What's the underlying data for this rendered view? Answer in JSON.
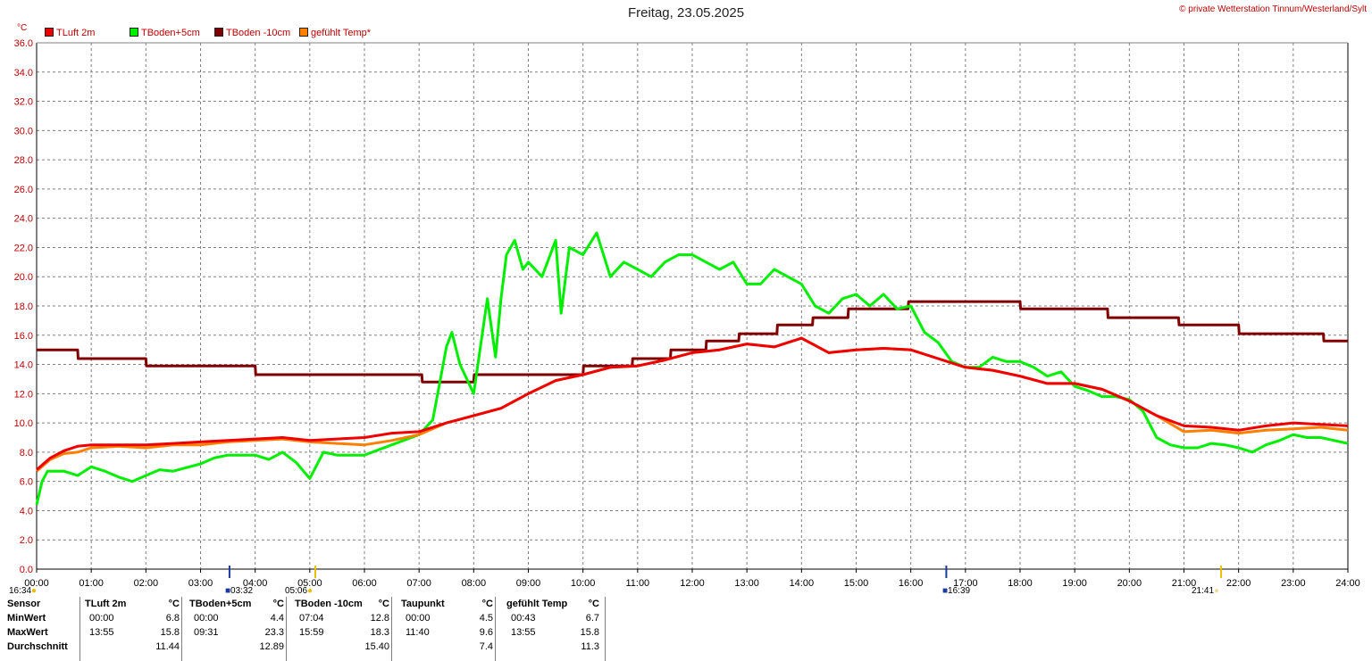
{
  "title": "Freitag, 23.05.2025",
  "copyright": "© private Wetterstation Tinnum/Westerland/Sylt",
  "colors": {
    "tluft": "#ee0000",
    "tboden5": "#00ee00",
    "tboden10": "#800000",
    "gefuehlt": "#ff8000",
    "grid": "#808080",
    "axis_text": "#000000",
    "legend_text": "#c00000"
  },
  "legend": [
    {
      "label": "TLuft 2m",
      "color": "#ee0000"
    },
    {
      "label": "TBoden+5cm",
      "color": "#00ee00"
    },
    {
      "label": "TBoden -10cm",
      "color": "#800000"
    },
    {
      "label": "gefühlt Temp*",
      "color": "#ff8000"
    }
  ],
  "unit": "°C",
  "sun_markers": [
    {
      "label": "16:34",
      "icon": "moon-set-icon"
    },
    {
      "label": "03:32",
      "icon": "moon-rise-icon"
    },
    {
      "label": "05:06",
      "icon": "sunrise-icon"
    },
    {
      "label": "16:39",
      "icon": "moon-icon"
    },
    {
      "label": "21:41",
      "icon": "sunset-icon"
    }
  ],
  "chart_data": {
    "type": "line",
    "title": "Freitag, 23.05.2025",
    "ylabel": "°C",
    "xlabel": "",
    "ylim": [
      0,
      36
    ],
    "xlim": [
      0,
      24
    ],
    "y_ticks": [
      "0.0",
      "2.0",
      "4.0",
      "6.0",
      "8.0",
      "10.0",
      "12.0",
      "14.0",
      "16.0",
      "18.0",
      "20.0",
      "22.0",
      "24.0",
      "26.0",
      "28.0",
      "30.0",
      "32.0",
      "34.0",
      "36.0"
    ],
    "x_ticks": [
      "00:00",
      "01:00",
      "02:00",
      "03:00",
      "04:00",
      "05:00",
      "06:00",
      "07:00",
      "08:00",
      "09:00",
      "10:00",
      "11:00",
      "12:00",
      "13:00",
      "14:00",
      "15:00",
      "16:00",
      "17:00",
      "18:00",
      "19:00",
      "20:00",
      "21:00",
      "22:00",
      "23:00",
      "24:00"
    ],
    "grid": true,
    "legend_position": "top-left",
    "series": [
      {
        "name": "TLuft 2m",
        "color": "#ee0000",
        "x": [
          0,
          0.25,
          0.5,
          0.75,
          1,
          1.5,
          2,
          2.5,
          3,
          3.5,
          4,
          4.5,
          5,
          5.5,
          6,
          6.5,
          7,
          7.5,
          8,
          8.5,
          9,
          9.5,
          10,
          10.5,
          11,
          11.5,
          12,
          12.5,
          13,
          13.5,
          14,
          14.5,
          15,
          15.5,
          16,
          16.5,
          17,
          17.5,
          18,
          18.5,
          19,
          19.5,
          20,
          20.5,
          21,
          21.5,
          22,
          22.5,
          23,
          23.5,
          24
        ],
        "y": [
          6.8,
          7.6,
          8.1,
          8.4,
          8.5,
          8.5,
          8.5,
          8.6,
          8.7,
          8.8,
          8.9,
          9.0,
          8.8,
          8.9,
          9.0,
          9.3,
          9.4,
          10.0,
          10.5,
          11.0,
          12.0,
          12.9,
          13.3,
          13.8,
          13.9,
          14.3,
          14.8,
          15.0,
          15.4,
          15.2,
          15.8,
          14.8,
          15.0,
          15.1,
          15.0,
          14.4,
          13.8,
          13.6,
          13.2,
          12.7,
          12.7,
          12.3,
          11.5,
          10.5,
          9.8,
          9.7,
          9.5,
          9.8,
          10.0,
          9.9,
          9.8
        ]
      },
      {
        "name": "TBoden+5cm",
        "color": "#00ee00",
        "x": [
          0,
          0.1,
          0.2,
          0.5,
          0.75,
          1,
          1.25,
          1.5,
          1.75,
          2,
          2.25,
          2.5,
          3,
          3.25,
          3.5,
          4,
          4.25,
          4.5,
          4.75,
          5,
          5.25,
          5.5,
          6,
          6.5,
          7,
          7.25,
          7.5,
          7.6,
          7.75,
          8,
          8.25,
          8.4,
          8.5,
          8.6,
          8.75,
          8.9,
          9,
          9.25,
          9.5,
          9.6,
          9.75,
          10,
          10.25,
          10.5,
          10.75,
          11,
          11.25,
          11.5,
          11.75,
          12,
          12.25,
          12.5,
          12.75,
          13,
          13.25,
          13.5,
          13.75,
          14,
          14.25,
          14.5,
          14.75,
          15,
          15.25,
          15.5,
          15.75,
          16,
          16.25,
          16.5,
          16.75,
          17,
          17.25,
          17.5,
          17.75,
          18,
          18.25,
          18.5,
          18.75,
          19,
          19.25,
          19.5,
          19.75,
          20,
          20.25,
          20.5,
          20.75,
          21,
          21.25,
          21.5,
          21.75,
          22,
          22.25,
          22.5,
          22.75,
          23,
          23.25,
          23.5,
          23.75,
          24
        ],
        "y": [
          4.4,
          6.0,
          6.7,
          6.7,
          6.4,
          7.0,
          6.7,
          6.3,
          6.0,
          6.4,
          6.8,
          6.7,
          7.2,
          7.6,
          7.8,
          7.8,
          7.5,
          8.0,
          7.3,
          6.2,
          8.0,
          7.8,
          7.8,
          8.5,
          9.2,
          10.2,
          15.2,
          16.2,
          14.0,
          12.0,
          18.5,
          14.5,
          18.5,
          21.5,
          22.5,
          20.5,
          21.0,
          20.0,
          22.5,
          17.5,
          22.0,
          21.5,
          23.0,
          20.0,
          21.0,
          20.5,
          20.0,
          21.0,
          21.5,
          21.5,
          21.0,
          20.5,
          21.0,
          19.5,
          19.5,
          20.5,
          20.0,
          19.5,
          18.0,
          17.5,
          18.5,
          18.8,
          18.0,
          18.8,
          17.8,
          18.0,
          16.2,
          15.5,
          14.2,
          13.8,
          13.8,
          14.5,
          14.2,
          14.2,
          13.8,
          13.2,
          13.5,
          12.5,
          12.2,
          11.8,
          11.8,
          11.6,
          10.8,
          9.0,
          8.5,
          8.3,
          8.3,
          8.6,
          8.5,
          8.3,
          8.0,
          8.5,
          8.8,
          9.2,
          9.0,
          9.0,
          8.8,
          8.6
        ]
      },
      {
        "name": "TBoden -10cm",
        "color": "#800000",
        "x": [
          0,
          0.75,
          0.76,
          2.0,
          2.01,
          4.0,
          4.01,
          7.05,
          7.06,
          8.0,
          8.01,
          10.0,
          10.01,
          10.9,
          10.91,
          11.6,
          11.61,
          12.25,
          12.26,
          12.85,
          12.86,
          13.55,
          13.56,
          14.2,
          14.21,
          14.85,
          14.86,
          15.95,
          15.96,
          18.0,
          18.01,
          19.6,
          19.61,
          20.9,
          20.91,
          22.0,
          22.01,
          23.55,
          23.56,
          24
        ],
        "y": [
          15.0,
          15.0,
          14.4,
          14.4,
          13.9,
          13.9,
          13.3,
          13.3,
          12.8,
          12.8,
          13.3,
          13.3,
          13.9,
          13.9,
          14.4,
          14.4,
          15.0,
          15.0,
          15.6,
          15.6,
          16.1,
          16.1,
          16.7,
          16.7,
          17.2,
          17.2,
          17.8,
          17.8,
          18.3,
          18.3,
          17.8,
          17.8,
          17.2,
          17.2,
          16.7,
          16.7,
          16.1,
          16.1,
          15.6,
          15.6
        ]
      },
      {
        "name": "gefühlt Temp*",
        "color": "#ff8000",
        "x": [
          0,
          0.25,
          0.5,
          0.75,
          1,
          1.5,
          2,
          2.5,
          3,
          3.5,
          4,
          4.5,
          5,
          5.5,
          6,
          6.5,
          7,
          7.5,
          8,
          8.5,
          9,
          9.5,
          10,
          10.5,
          11,
          11.5,
          12,
          12.5,
          13,
          13.5,
          14,
          14.5,
          15,
          15.5,
          16,
          16.5,
          17,
          17.5,
          18,
          18.5,
          19,
          19.5,
          20,
          20.5,
          21,
          21.5,
          22,
          22.5,
          23,
          23.5,
          24
        ],
        "y": [
          6.7,
          7.5,
          7.9,
          8.0,
          8.3,
          8.4,
          8.3,
          8.5,
          8.5,
          8.7,
          8.8,
          8.9,
          8.7,
          8.6,
          8.5,
          8.8,
          9.2,
          10.0,
          10.5,
          11.0,
          12.0,
          12.9,
          13.3,
          13.8,
          13.9,
          14.3,
          14.8,
          15.0,
          15.4,
          15.2,
          15.8,
          14.8,
          15.0,
          15.1,
          15.0,
          14.4,
          13.8,
          13.6,
          13.2,
          12.7,
          12.7,
          12.3,
          11.5,
          10.5,
          9.4,
          9.5,
          9.3,
          9.5,
          9.6,
          9.7,
          9.5
        ]
      }
    ]
  },
  "stats": {
    "sensor_col": {
      "header": "Sensor",
      "rows": [
        "MinWert",
        "MaxWert",
        "Durchschnitt"
      ]
    },
    "columns": [
      {
        "name": "TLuft 2m",
        "unit": "°C",
        "min_time": "00:00",
        "min_val": "6.8",
        "max_time": "13:55",
        "max_val": "15.8",
        "avg": "11.44"
      },
      {
        "name": "TBoden+5cm",
        "unit": "°C",
        "min_time": "00:00",
        "min_val": "4.4",
        "max_time": "09:31",
        "max_val": "23.3",
        "avg": "12.89"
      },
      {
        "name": "TBoden -10cm",
        "unit": "°C",
        "min_time": "07:04",
        "min_val": "12.8",
        "max_time": "15:59",
        "max_val": "18.3",
        "avg": "15.40"
      },
      {
        "name": "Taupunkt",
        "unit": "°C",
        "min_time": "00:00",
        "min_val": "4.5",
        "max_time": "11:40",
        "max_val": "9.6",
        "avg": "7.4"
      },
      {
        "name": "gefühlt Temp",
        "unit": "°C",
        "min_time": "00:43",
        "min_val": "6.7",
        "max_time": "13:55",
        "max_val": "15.8",
        "avg": "11.3"
      }
    ]
  }
}
